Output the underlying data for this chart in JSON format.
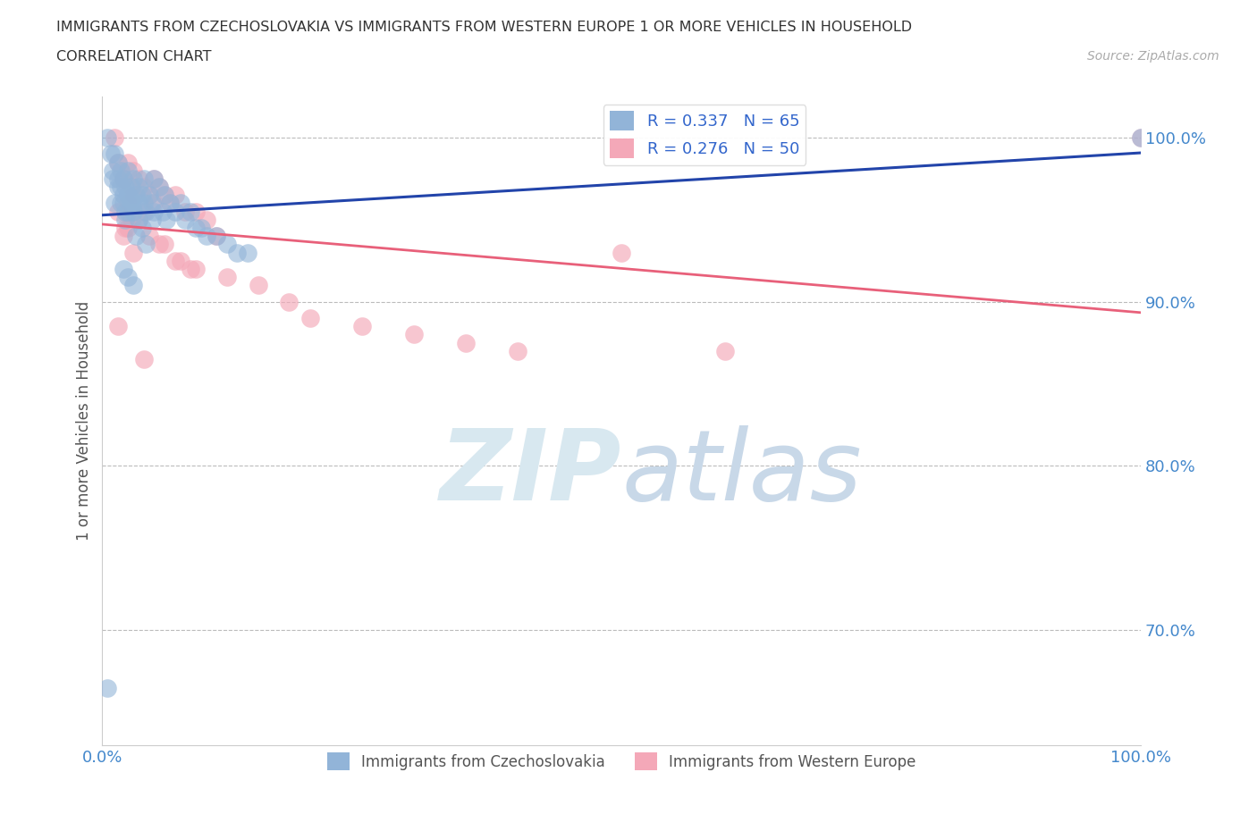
{
  "title_line1": "IMMIGRANTS FROM CZECHOSLOVAKIA VS IMMIGRANTS FROM WESTERN EUROPE 1 OR MORE VEHICLES IN HOUSEHOLD",
  "title_line2": "CORRELATION CHART",
  "source_text": "Source: ZipAtlas.com",
  "ylabel": "1 or more Vehicles in Household",
  "xlim": [
    0.0,
    1.0
  ],
  "ylim": [
    0.63,
    1.025
  ],
  "yticks": [
    0.7,
    0.8,
    0.9,
    1.0
  ],
  "ytick_labels": [
    "70.0%",
    "80.0%",
    "90.0%",
    "100.0%"
  ],
  "xticks": [
    0.0,
    0.2,
    0.4,
    0.6,
    0.8,
    1.0
  ],
  "xtick_labels": [
    "0.0%",
    "",
    "",
    "",
    "",
    "100.0%"
  ],
  "legend_r1": "R = 0.337",
  "legend_n1": "N = 65",
  "legend_r2": "R = 0.276",
  "legend_n2": "N = 50",
  "color_blue": "#92B4D8",
  "color_pink": "#F4A8B8",
  "color_trendline_blue": "#2244AA",
  "color_trendline_pink": "#E8607A",
  "color_grid": "#BBBBBB",
  "color_title": "#333333",
  "color_source": "#AAAAAA",
  "color_axis_label": "#555555",
  "color_ytick_label": "#4488CC",
  "watermark_color": "#D8E8F0",
  "blue_x": [
    0.005,
    0.008,
    0.01,
    0.012,
    0.015,
    0.015,
    0.018,
    0.018,
    0.02,
    0.02,
    0.022,
    0.022,
    0.025,
    0.025,
    0.025,
    0.028,
    0.03,
    0.03,
    0.03,
    0.032,
    0.035,
    0.035,
    0.038,
    0.04,
    0.04,
    0.042,
    0.045,
    0.048,
    0.05,
    0.05,
    0.055,
    0.058,
    0.06,
    0.062,
    0.065,
    0.07,
    0.075,
    0.08,
    0.085,
    0.09,
    0.01,
    0.015,
    0.02,
    0.025,
    0.03,
    0.035,
    0.012,
    0.018,
    0.022,
    0.028,
    0.032,
    0.038,
    0.042,
    0.048,
    0.095,
    0.1,
    0.11,
    0.12,
    0.13,
    0.14,
    0.02,
    0.025,
    0.03,
    0.005,
    1.0
  ],
  "blue_y": [
    1.0,
    0.99,
    0.98,
    0.99,
    0.985,
    0.97,
    0.98,
    0.96,
    0.975,
    0.965,
    0.97,
    0.955,
    0.98,
    0.965,
    0.955,
    0.97,
    0.975,
    0.96,
    0.955,
    0.965,
    0.97,
    0.96,
    0.965,
    0.975,
    0.96,
    0.955,
    0.965,
    0.96,
    0.975,
    0.955,
    0.97,
    0.955,
    0.965,
    0.95,
    0.96,
    0.955,
    0.96,
    0.95,
    0.955,
    0.945,
    0.975,
    0.975,
    0.96,
    0.965,
    0.955,
    0.95,
    0.96,
    0.97,
    0.95,
    0.96,
    0.94,
    0.945,
    0.935,
    0.95,
    0.945,
    0.94,
    0.94,
    0.935,
    0.93,
    0.93,
    0.92,
    0.915,
    0.91,
    0.665,
    1.0
  ],
  "pink_x": [
    0.012,
    0.015,
    0.02,
    0.025,
    0.028,
    0.03,
    0.035,
    0.04,
    0.045,
    0.05,
    0.055,
    0.06,
    0.065,
    0.07,
    0.08,
    0.09,
    0.1,
    0.11,
    0.02,
    0.025,
    0.03,
    0.035,
    0.04,
    0.05,
    0.02,
    0.025,
    0.03,
    0.06,
    0.07,
    0.09,
    0.12,
    0.15,
    0.18,
    0.2,
    0.25,
    0.3,
    0.35,
    0.4,
    0.5,
    0.6,
    0.015,
    0.022,
    0.028,
    0.045,
    0.055,
    0.075,
    0.085,
    0.015,
    0.04,
    1.0
  ],
  "pink_y": [
    1.0,
    0.985,
    0.975,
    0.985,
    0.97,
    0.98,
    0.975,
    0.97,
    0.965,
    0.975,
    0.97,
    0.965,
    0.96,
    0.965,
    0.955,
    0.955,
    0.95,
    0.94,
    0.975,
    0.96,
    0.965,
    0.95,
    0.955,
    0.96,
    0.94,
    0.945,
    0.93,
    0.935,
    0.925,
    0.92,
    0.915,
    0.91,
    0.9,
    0.89,
    0.885,
    0.88,
    0.875,
    0.87,
    0.93,
    0.87,
    0.955,
    0.945,
    0.95,
    0.94,
    0.935,
    0.925,
    0.92,
    0.885,
    0.865,
    1.0
  ]
}
